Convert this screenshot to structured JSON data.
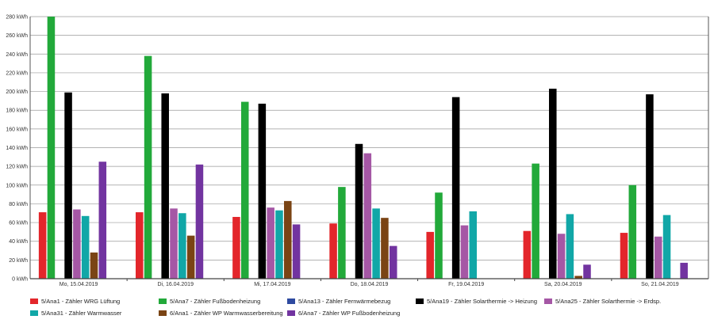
{
  "chart_data": {
    "type": "bar",
    "title": "",
    "xlabel": "",
    "ylabel": "",
    "unit": "kWh",
    "ylim": [
      0,
      280
    ],
    "yticks": [
      0,
      20,
      40,
      60,
      80,
      100,
      120,
      140,
      160,
      180,
      200,
      220,
      240,
      260,
      280
    ],
    "ytick_labels": [
      "0 kWh",
      "20 kWh",
      "40 kWh",
      "60 kWh",
      "80 kWh",
      "100 kWh",
      "120 kWh",
      "140 kWh",
      "160 kWh",
      "180 kWh",
      "200 kWh",
      "220 kWh",
      "240 kWh",
      "260 kWh",
      "280 kWh"
    ],
    "grid": true,
    "legend_position": "bottom",
    "categories": [
      "Mo, 15.04.2019",
      "Di, 16.04.2019",
      "Mi, 17.04.2019",
      "Do, 18.04.2019",
      "Fr, 19.04.2019",
      "Sa, 20.04.2019",
      "So, 21.04.2019"
    ],
    "series": [
      {
        "name": "5/Ana1 - Zähler WRG Lüftung",
        "color": "#e3262b",
        "values": [
          71,
          71,
          66,
          59,
          50,
          51,
          49
        ]
      },
      {
        "name": "5/Ana7 - Zähler Fußbodenheizung",
        "color": "#22a93a",
        "values": [
          281,
          238,
          189,
          98,
          92,
          123,
          100
        ]
      },
      {
        "name": "5/Ana13 - Zähler Fernwärmebezug",
        "color": "#2e4aa0",
        "values": [
          0,
          0,
          0,
          0,
          0,
          0,
          0
        ]
      },
      {
        "name": "5/Ana19 - Zähler Solarthermie -> Heizung",
        "color": "#000000",
        "values": [
          199,
          198,
          187,
          144,
          194,
          203,
          197
        ]
      },
      {
        "name": "5/Ana25 - Zähler Solarthermie -> Erdsp.",
        "color": "#a557a5",
        "values": [
          74,
          75,
          76,
          134,
          57,
          48,
          45
        ]
      },
      {
        "name": "5/Ana31 - Zähler Warmwasser",
        "color": "#11a7a7",
        "values": [
          67,
          70,
          73,
          75,
          72,
          69,
          68
        ]
      },
      {
        "name": "6/Ana1 - Zähler WP Warmwasserbereitung",
        "color": "#7a4414",
        "values": [
          28,
          46,
          83,
          65,
          0,
          3,
          0
        ]
      },
      {
        "name": "6/Ana7 - Zähler WP Fußbodenheizung",
        "color": "#7234a0",
        "values": [
          125,
          122,
          58,
          35,
          0,
          15,
          17
        ]
      }
    ]
  }
}
